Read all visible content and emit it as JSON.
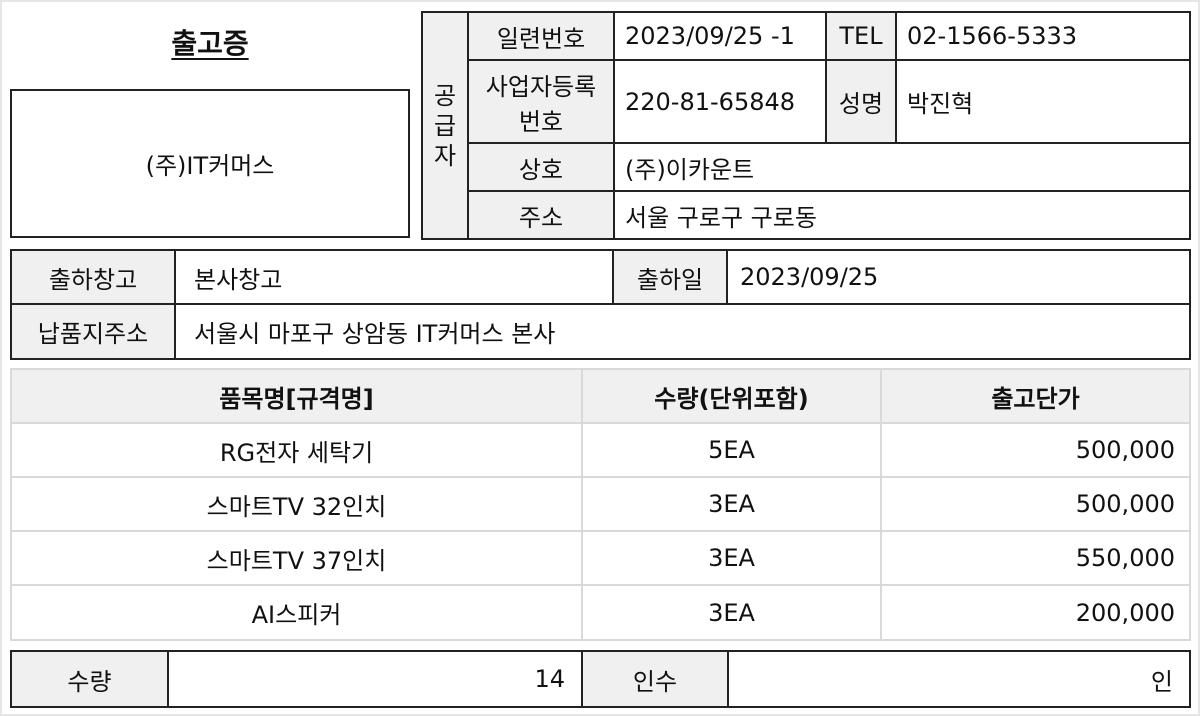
{
  "title": "출고증",
  "customer": "(주)IT커머스",
  "supplier": {
    "section_label": [
      "공",
      "급",
      "자"
    ],
    "serial_label": "일련번호",
    "serial_value": "2023/09/25 -1",
    "tel_label": "TEL",
    "tel_value": "02-1566-5333",
    "biz_no_label_1": "사업자등록",
    "biz_no_label_2": "번호",
    "biz_no_value": "220-81-65848",
    "name_label": "성명",
    "name_value": "박진혁",
    "company_label": "상호",
    "company_value": "(주)이카운트",
    "address_label": "주소",
    "address_value": "서울 구로구 구로동"
  },
  "shipping": {
    "warehouse_label": "출하창고",
    "warehouse_value": "본사창고",
    "date_label": "출하일",
    "date_value": "2023/09/25",
    "delivery_label": "납품지주소",
    "delivery_value": "서울시 마포구 상암동 IT커머스 본사"
  },
  "items": {
    "headers": [
      "품목명[규격명]",
      "수량(단위포함)",
      "출고단가"
    ],
    "rows": [
      {
        "name": "RG전자 세탁기",
        "qty": "5EA",
        "price": "500,000"
      },
      {
        "name": "스마트TV 32인치",
        "qty": "3EA",
        "price": "500,000"
      },
      {
        "name": "스마트TV 37인치",
        "qty": "3EA",
        "price": "550,000"
      },
      {
        "name": "AI스피커",
        "qty": "3EA",
        "price": "200,000"
      }
    ]
  },
  "totals": {
    "qty_label": "수량",
    "qty_value": "14",
    "receipt_label": "인수",
    "receipt_value": "인"
  }
}
